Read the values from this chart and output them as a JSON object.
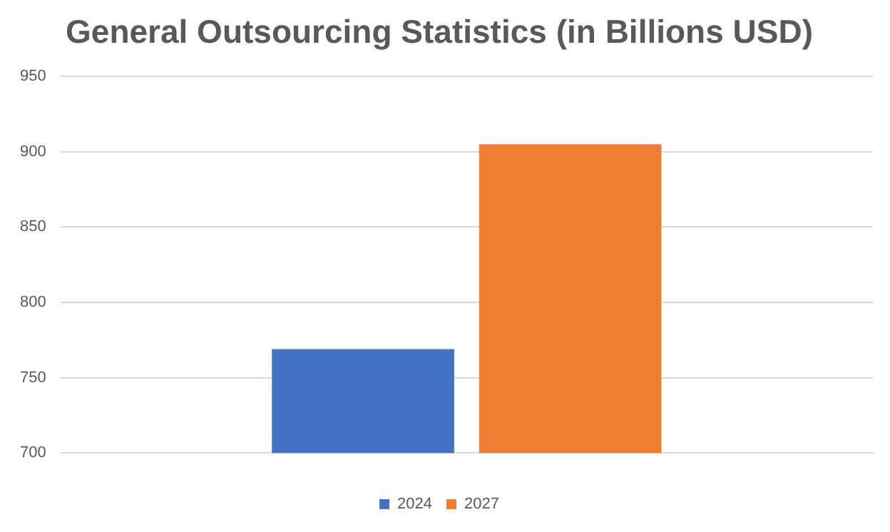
{
  "chart_data": {
    "type": "bar",
    "title": "General Outsourcing Statistics (in Billions USD)",
    "categories": [
      null
    ],
    "series": [
      {
        "name": "2024",
        "color": "#4472c4",
        "values": [
          769
        ]
      },
      {
        "name": "2027",
        "color": "#ed7d31",
        "values": [
          905
        ]
      }
    ],
    "ylim": [
      700,
      950
    ],
    "yticks": [
      700,
      750,
      800,
      850,
      900,
      950
    ],
    "grid": "y",
    "legend": "bottom"
  }
}
